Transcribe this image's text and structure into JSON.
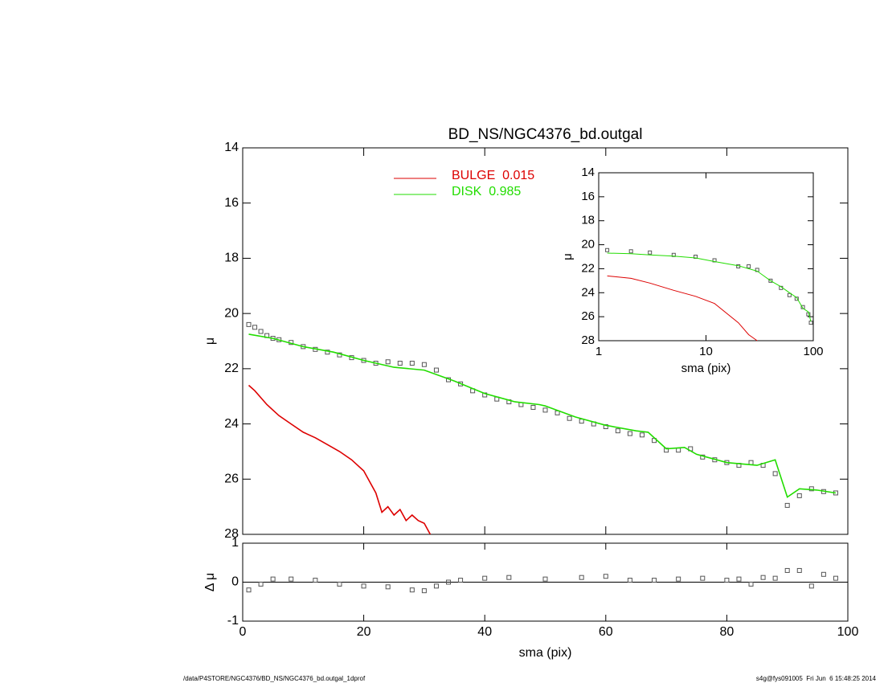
{
  "chart_data": [
    {
      "type": "line",
      "title": "BD_NS/NGC4376_bd.outgal",
      "ylabel": "μ",
      "xlim": [
        0,
        100
      ],
      "xticks": [
        0,
        20,
        40,
        60,
        80,
        100
      ],
      "x_tick_labels": false,
      "ylim": [
        14,
        28
      ],
      "y_inverted": true,
      "yticks": [
        14,
        16,
        18,
        20,
        22,
        24,
        26,
        28
      ],
      "legend": "top-center",
      "series": [
        {
          "style": "markers",
          "color": "#555555",
          "x": [
            1,
            2,
            3,
            4,
            5,
            6,
            8,
            10,
            12,
            14,
            16,
            18,
            20,
            22,
            24,
            26,
            28,
            30,
            32,
            34,
            36,
            38,
            40,
            42,
            44,
            46,
            48,
            50,
            52,
            54,
            56,
            58,
            60,
            62,
            64,
            66,
            68,
            70,
            72,
            74,
            76,
            78,
            80,
            82,
            84,
            86,
            88,
            90,
            92,
            94,
            96,
            98
          ],
          "values": [
            20.4,
            20.5,
            20.65,
            20.8,
            20.9,
            20.95,
            21.05,
            21.2,
            21.3,
            21.4,
            21.5,
            21.6,
            21.7,
            21.8,
            21.75,
            21.8,
            21.8,
            21.85,
            22.05,
            22.4,
            22.55,
            22.8,
            22.95,
            23.1,
            23.2,
            23.3,
            23.4,
            23.5,
            23.6,
            23.8,
            23.9,
            24.0,
            24.1,
            24.25,
            24.35,
            24.4,
            24.6,
            24.95,
            24.95,
            24.9,
            25.2,
            25.3,
            25.4,
            25.5,
            25.4,
            25.5,
            25.8,
            26.95,
            26.6,
            26.35,
            26.45,
            26.5
          ]
        },
        {
          "name": "BULGE  0.015",
          "style": "line",
          "color": "#dd0000",
          "x": [
            1,
            2,
            4,
            6,
            8,
            10,
            12,
            14,
            16,
            18,
            20,
            22,
            23,
            24,
            25,
            26,
            27,
            28,
            29,
            30,
            31
          ],
          "values": [
            22.6,
            22.8,
            23.3,
            23.7,
            24.0,
            24.3,
            24.5,
            24.75,
            25.0,
            25.3,
            25.7,
            26.5,
            27.2,
            27.0,
            27.3,
            27.1,
            27.5,
            27.3,
            27.5,
            27.6,
            28.0
          ]
        },
        {
          "name": "DISK  0.985",
          "style": "line",
          "color": "#22dd00",
          "x": [
            1,
            5,
            10,
            15,
            20,
            25,
            30,
            35,
            40,
            45,
            49,
            50,
            55,
            60,
            65,
            67,
            70,
            73,
            75,
            80,
            85,
            88,
            90,
            92,
            95,
            98
          ],
          "values": [
            20.75,
            20.9,
            21.2,
            21.4,
            21.7,
            21.95,
            22.05,
            22.45,
            22.9,
            23.2,
            23.3,
            23.35,
            23.75,
            24.05,
            24.25,
            24.3,
            24.9,
            24.85,
            25.1,
            25.4,
            25.5,
            25.3,
            26.65,
            26.35,
            26.4,
            26.5
          ]
        }
      ]
    },
    {
      "type": "line",
      "xlabel": "sma (pix)",
      "ylabel": "Δ μ",
      "xlim": [
        0,
        100
      ],
      "xticks": [
        0,
        20,
        40,
        60,
        80,
        100
      ],
      "x_tick_labels": true,
      "ylim": [
        -1,
        1
      ],
      "y_inverted": false,
      "yticks": [
        -1,
        0,
        1
      ],
      "reference_line": 0,
      "series": [
        {
          "style": "markers",
          "color": "#555555",
          "x": [
            1,
            3,
            5,
            8,
            12,
            16,
            20,
            24,
            28,
            30,
            32,
            34,
            36,
            40,
            44,
            50,
            56,
            60,
            64,
            68,
            72,
            76,
            80,
            82,
            84,
            86,
            88,
            90,
            92,
            94,
            96,
            98
          ],
          "values": [
            -0.2,
            -0.05,
            0.08,
            0.08,
            0.05,
            -0.05,
            -0.1,
            -0.12,
            -0.2,
            -0.22,
            -0.1,
            0.0,
            0.05,
            0.1,
            0.12,
            0.08,
            0.12,
            0.15,
            0.05,
            0.05,
            0.08,
            0.1,
            0.05,
            0.08,
            -0.05,
            0.12,
            0.1,
            0.3,
            0.3,
            -0.1,
            0.2,
            0.1
          ]
        }
      ]
    },
    {
      "type": "line",
      "xlabel": "sma (pix)",
      "ylabel": "μ",
      "xlog": true,
      "xlim": [
        1,
        100
      ],
      "xticks": [
        1,
        10,
        100
      ],
      "x_tick_labels": true,
      "ylim": [
        14,
        28
      ],
      "y_inverted": true,
      "yticks": [
        14,
        16,
        18,
        20,
        22,
        24,
        26,
        28
      ],
      "series": [
        {
          "style": "markers",
          "color": "#555555",
          "x": [
            1.2,
            2,
            3,
            5,
            8,
            12,
            20,
            25,
            30,
            40,
            50,
            60,
            70,
            80,
            90,
            95
          ],
          "values": [
            20.45,
            20.55,
            20.65,
            20.85,
            21.0,
            21.3,
            21.8,
            21.8,
            22.1,
            23.0,
            23.6,
            24.2,
            24.5,
            25.2,
            25.8,
            26.5
          ]
        },
        {
          "style": "line",
          "color": "#dd0000",
          "x": [
            1.2,
            2,
            3,
            5,
            8,
            12,
            20,
            25,
            30
          ],
          "values": [
            22.6,
            22.8,
            23.2,
            23.8,
            24.3,
            24.9,
            26.5,
            27.5,
            28.0
          ]
        },
        {
          "style": "line",
          "color": "#22dd00",
          "x": [
            1.2,
            2,
            3,
            5,
            8,
            12,
            20,
            25,
            30,
            40,
            50,
            60,
            70,
            80,
            90,
            95
          ],
          "values": [
            20.7,
            20.75,
            20.85,
            20.95,
            21.1,
            21.4,
            21.75,
            22.0,
            22.2,
            23.0,
            23.5,
            24.0,
            24.4,
            25.3,
            25.6,
            26.4
          ]
        }
      ]
    }
  ],
  "footer": {
    "left": "/data/P4STORE/NGC4376/BD_NS/NGC4376_bd.outgal_1dprof",
    "right": "s4g@fys091005  Fri Jun  6 15:48:25 2014"
  }
}
